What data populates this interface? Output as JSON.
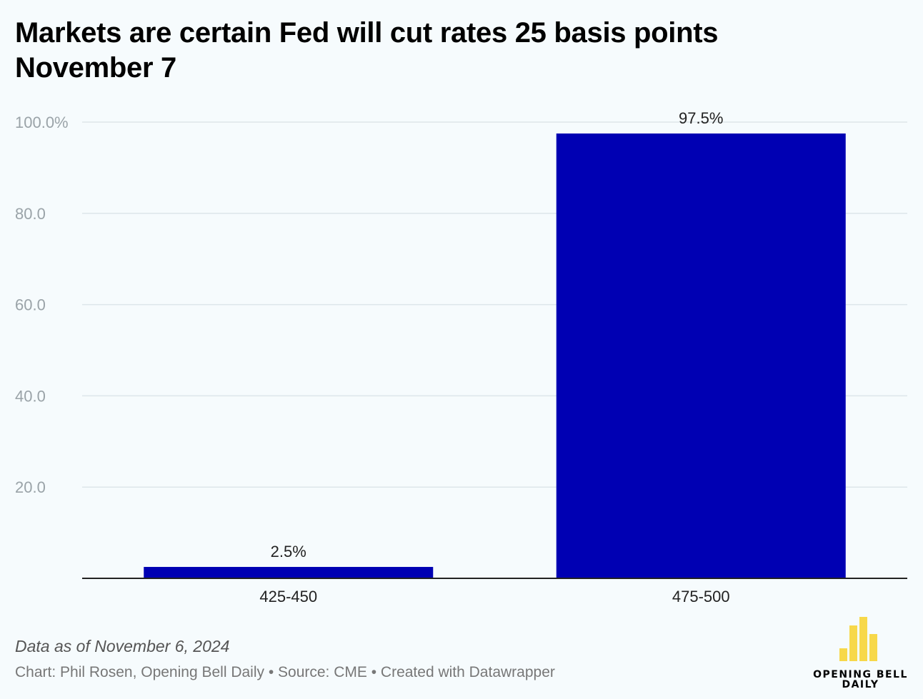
{
  "header": {
    "title": "Markets are certain Fed will cut rates 25 basis points November 7"
  },
  "chart_data": {
    "type": "bar",
    "title": "Markets are certain Fed will cut rates 25 basis points November 7",
    "xlabel": "",
    "ylabel": "",
    "categories": [
      "425-450",
      "475-500"
    ],
    "values": [
      2.5,
      97.5
    ],
    "value_labels": [
      "2.5%",
      "97.5%"
    ],
    "yticks": [
      20,
      40,
      60,
      80,
      100
    ],
    "ytick_labels": [
      "20.0",
      "40.0",
      "60.0",
      "80.0",
      "100.0%"
    ],
    "ylim": [
      0,
      100
    ],
    "grid": true,
    "legend": "none",
    "bar_color": "#0000b3",
    "grid_color": "#dde6ea",
    "tick_color": "#9aa3a8"
  },
  "footer": {
    "note": "Data as of November 6, 2024",
    "credit": "Chart: Phil Rosen, Opening Bell Daily • Source: CME • Created with Datawrapper"
  },
  "logo": {
    "line1": "OPENING BELL",
    "line2": "DAILY",
    "color": "#f7d84a"
  }
}
